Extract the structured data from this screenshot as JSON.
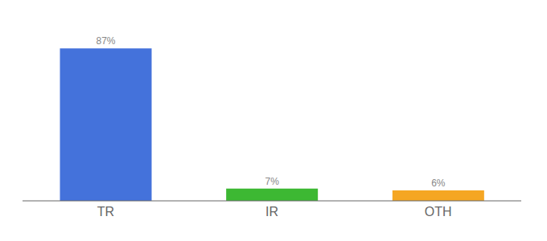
{
  "chart_data": {
    "type": "bar",
    "categories": [
      "TR",
      "IR",
      "OTH"
    ],
    "values": [
      87,
      7,
      6
    ],
    "value_labels": [
      "87%",
      "7%",
      "6%"
    ],
    "data_labels": true,
    "colors": [
      "#4472db",
      "#3db833",
      "#f5a623"
    ],
    "ylim": [
      0,
      100
    ],
    "tick_labels": "x"
  }
}
